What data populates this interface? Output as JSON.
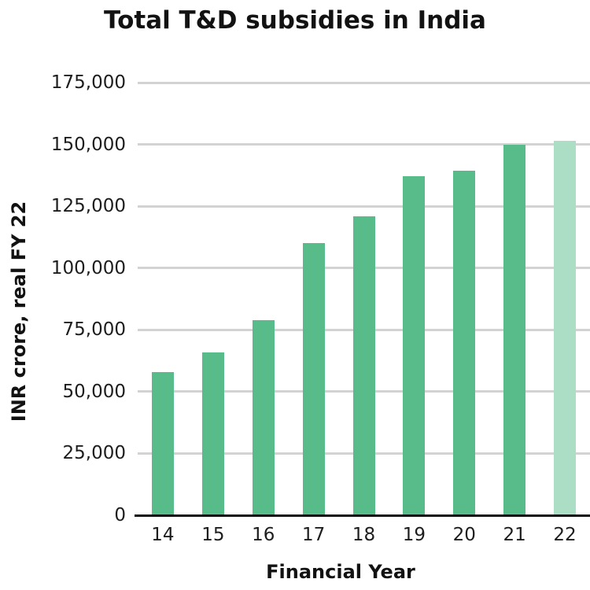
{
  "chart_data": {
    "type": "bar",
    "title": "Total T&D subsidies in India",
    "xlabel": "Financial Year",
    "ylabel": "INR crore, real FY 22",
    "categories": [
      "14",
      "15",
      "16",
      "17",
      "18",
      "19",
      "20",
      "21",
      "22"
    ],
    "values": [
      58000,
      66000,
      79000,
      110000,
      121000,
      137000,
      139500,
      150000,
      151500
    ],
    "ylim": [
      0,
      175000
    ],
    "ytick_step": 25000,
    "yticks": [
      0,
      25000,
      50000,
      75000,
      100000,
      125000,
      150000,
      175000
    ],
    "ytick_labels": [
      "0",
      "25,000",
      "50,000",
      "75,000",
      "100,000",
      "125,000",
      "150,000",
      "175,000"
    ],
    "grid": "horizontal gridlines on",
    "legend": "none",
    "bar_color": "#58BC8A",
    "last_bar_color": "#ACDEC5",
    "last_bar_note": "final bar (FY 22) shown in lighter shade",
    "gridline_color": "#d3d3d3",
    "axis_line_color": "#111111",
    "text_color": "#1d1d1d"
  }
}
